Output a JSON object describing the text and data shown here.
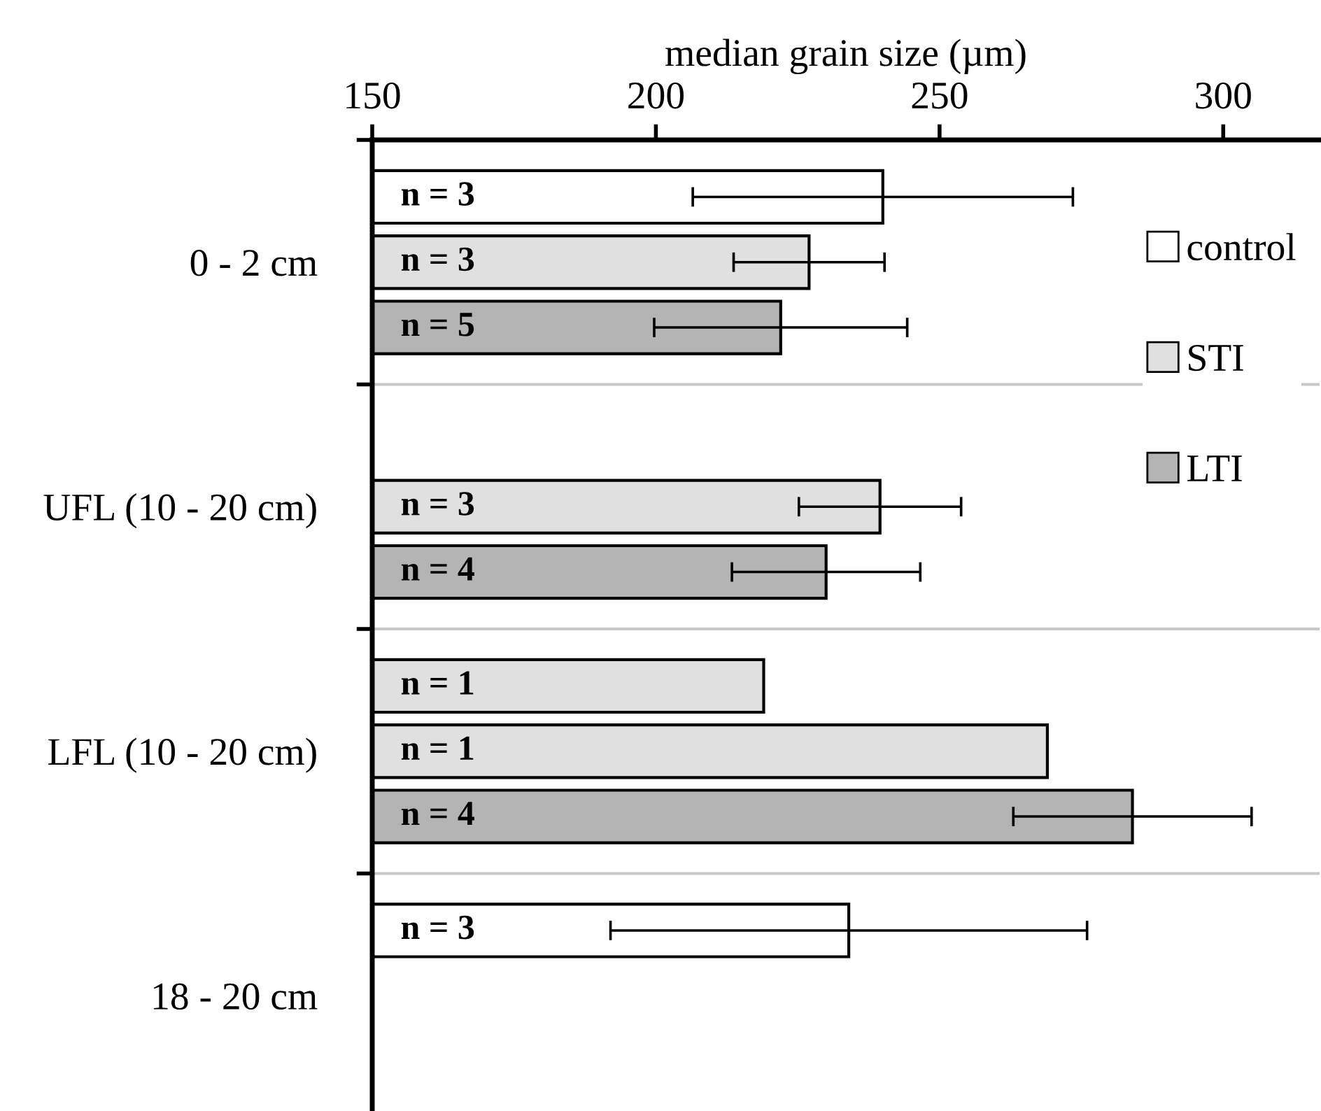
{
  "chart_data": {
    "type": "bar",
    "orientation": "horizontal",
    "xlabel": "median grain size (µm)",
    "categories": [
      "0 - 2 cm",
      "UFL (10 - 20 cm)",
      "LFL (10 - 20 cm)",
      "18 - 20 cm"
    ],
    "series": [
      {
        "name": "control",
        "color": "#ffffff",
        "colors": [
          "#ffffff",
          null,
          "#e0e0e0",
          "#ffffff"
        ],
        "values": [
          240,
          null,
          219,
          234
        ],
        "errors": [
          33.5,
          null,
          null,
          42
        ]
      },
      {
        "name": "STI",
        "color": "#e0e0e0",
        "colors": [
          "#e0e0e0",
          "#e0e0e0",
          "#e0e0e0",
          null
        ],
        "values": [
          227,
          239.5,
          269,
          null
        ],
        "errors": [
          13.3,
          14.3,
          null,
          null
        ]
      },
      {
        "name": "LTI",
        "color": "#b4b4b4",
        "colors": [
          "#b4b4b4",
          "#b4b4b4",
          "#b4b4b4",
          null
        ],
        "values": [
          222,
          230,
          284,
          null
        ],
        "errors": [
          22.3,
          16.6,
          21,
          null
        ]
      }
    ],
    "annotations": [
      "n = 3",
      "n = 3",
      "n = 5",
      "n = 3",
      "n = 4",
      "n = 1",
      "n = 1",
      "n = 4",
      "n = 3"
    ],
    "xlim": [
      150,
      317
    ],
    "xticks": [
      150,
      200,
      250,
      300
    ],
    "grid": "y",
    "legend": "top right"
  }
}
